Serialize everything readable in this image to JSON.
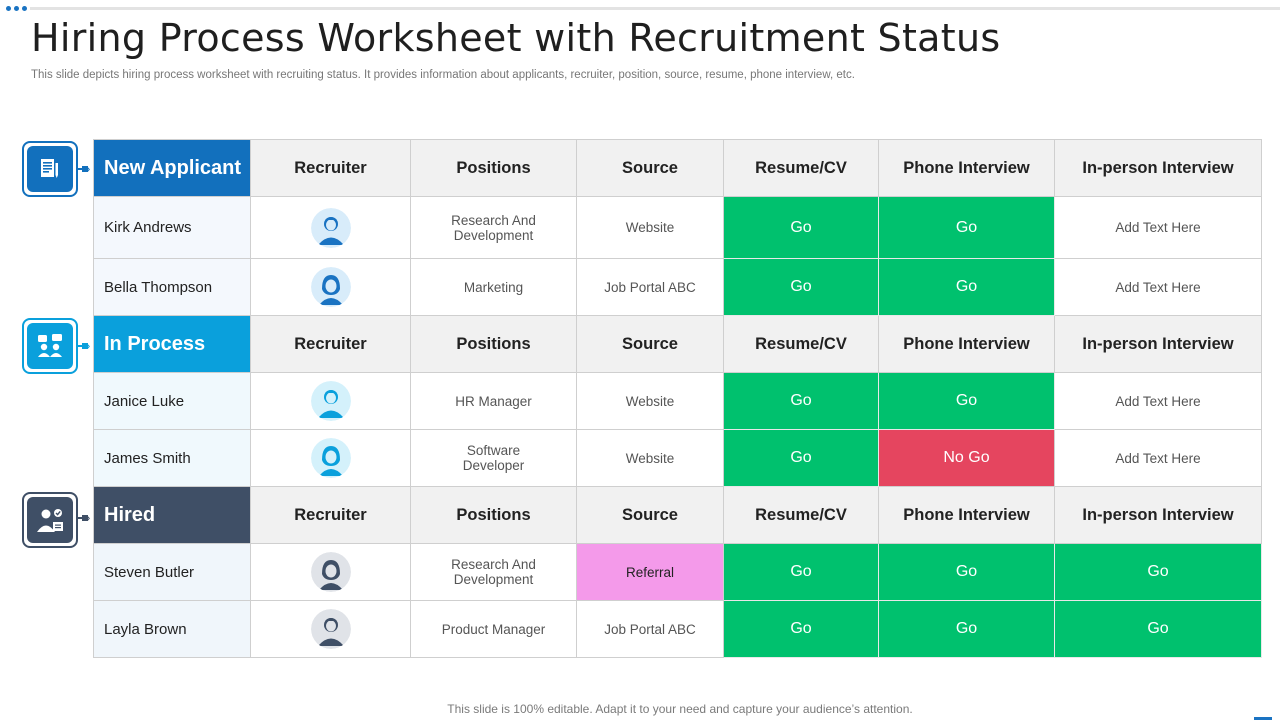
{
  "title": "Hiring Process Worksheet with Recruitment Status",
  "subtitle": "This slide depicts hiring process worksheet with recruiting status. It provides information about applicants, recruiter, position, source, resume, phone interview, etc.",
  "footer": "This slide is 100% editable. Adapt it to your need and capture your audience’s attention.",
  "columns": [
    "Recruiter",
    "Positions",
    "Source",
    "Resume/CV",
    "Phone Interview",
    "In-person Interview"
  ],
  "colors": {
    "new_applicant": "#1270bd",
    "in_process": "#0aa0dc",
    "hired": "#3f4f66",
    "go": "#00c16e",
    "no_go": "#e5455f",
    "referral": "#f49aea"
  },
  "icons": {
    "new_applicant": "document-icon",
    "in_process": "meeting-chat-icon",
    "hired": "hired-person-icon",
    "avatar_male": "user-male-icon",
    "avatar_female": "user-female-icon"
  },
  "sections": [
    {
      "label": "New Applicant",
      "rows": [
        {
          "name": "Kirk Andrews",
          "position": "Research And Development",
          "source": "Website",
          "resume": "Go",
          "phone": "Go",
          "inperson": "Add Text Here"
        },
        {
          "name": "Bella Thompson",
          "position": "Marketing",
          "source": "Job Portal ABC",
          "resume": "Go",
          "phone": "Go",
          "inperson": "Add Text Here"
        }
      ]
    },
    {
      "label": "In Process",
      "rows": [
        {
          "name": "Janice Luke",
          "position": "HR Manager",
          "source": "Website",
          "resume": "Go",
          "phone": "Go",
          "inperson": "Add Text Here"
        },
        {
          "name": "James Smith",
          "position": "Software Developer",
          "source": "Website",
          "resume": "Go",
          "phone": "No Go",
          "inperson": "Add Text Here"
        }
      ]
    },
    {
      "label": "Hired",
      "rows": [
        {
          "name": "Steven Butler",
          "position": "Research And Development",
          "source": "Referral",
          "resume": "Go",
          "phone": "Go",
          "inperson": "Go"
        },
        {
          "name": "Layla Brown",
          "position": "Product Manager",
          "source": "Job Portal ABC",
          "resume": "Go",
          "phone": "Go",
          "inperson": "Go"
        }
      ]
    }
  ]
}
